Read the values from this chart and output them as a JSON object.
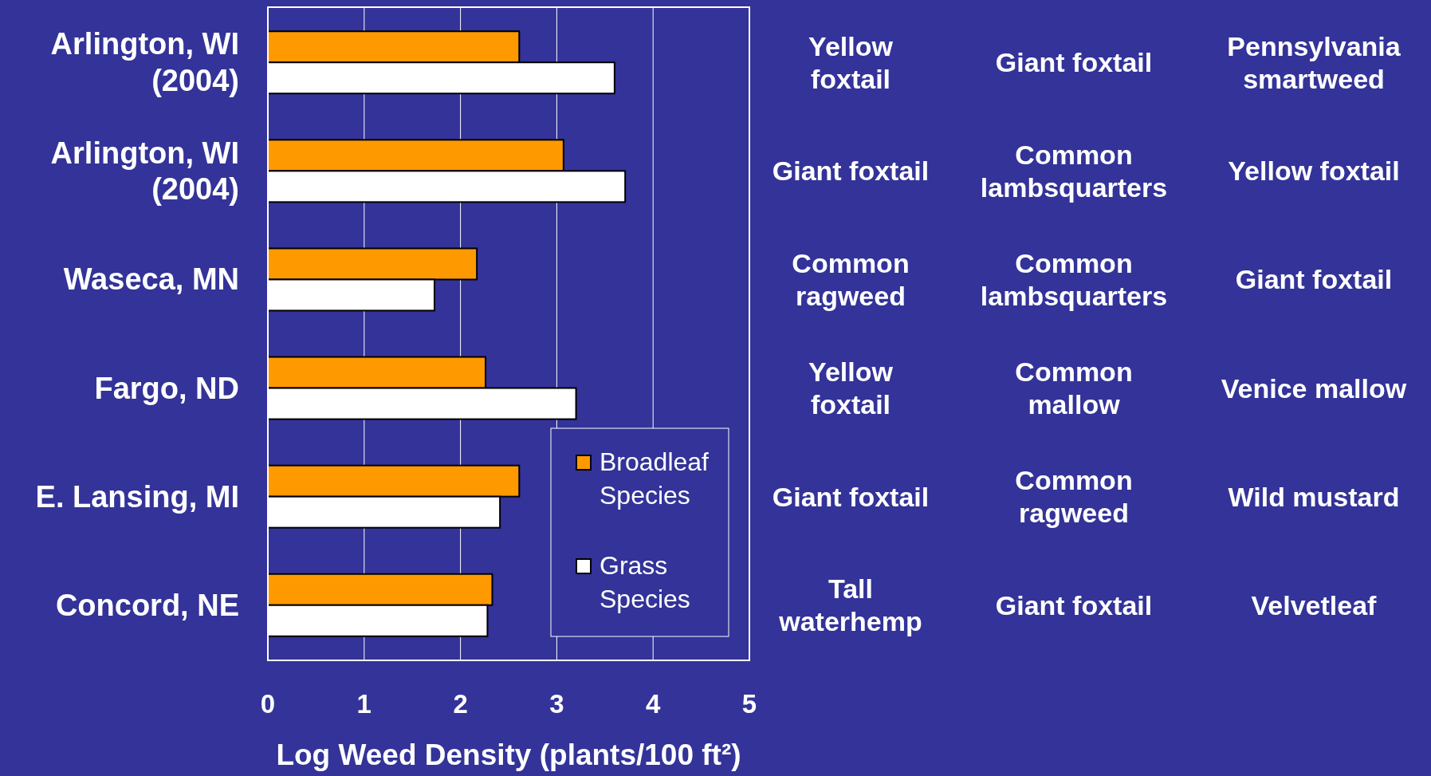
{
  "chart_data": {
    "type": "bar",
    "orientation": "horizontal",
    "xlabel": "Log Weed Density (plants/100 ft²)",
    "categories": [
      "Arlington, WI\n(2004)",
      "Arlington, WI\n(2004)",
      "Waseca, MN",
      "Fargo, ND",
      "E. Lansing, MI",
      "Concord, NE"
    ],
    "series": [
      {
        "name": "Broadleaf Species",
        "color": "#ff9900",
        "values": [
          2.61,
          3.07,
          2.17,
          2.26,
          2.61,
          2.33
        ]
      },
      {
        "name": "Grass Species",
        "color": "#ffffff",
        "values": [
          3.6,
          3.71,
          1.73,
          3.2,
          2.41,
          2.28
        ]
      }
    ],
    "xlim": [
      0,
      5
    ],
    "xticks": [
      0,
      1,
      2,
      3,
      4,
      5
    ],
    "grid": "x",
    "legend": "bottom right",
    "annotations": [
      "Yellow\nfoxtail",
      "Giant foxtail",
      "Pennsylvania\nsmartweed",
      "Giant foxtail",
      "Common\nlambsquarters",
      "Yellow foxtail",
      "Common\nragweed",
      "Common\nlambsquarters",
      "Giant foxtail",
      "Yellow\nfoxtail",
      "Common\nmallow",
      "Venice mallow",
      "Giant foxtail",
      "Common\nragweed",
      "Wild mustard",
      "Tall\nwaterhemp",
      "Giant foxtail",
      "Velvetleaf"
    ]
  }
}
